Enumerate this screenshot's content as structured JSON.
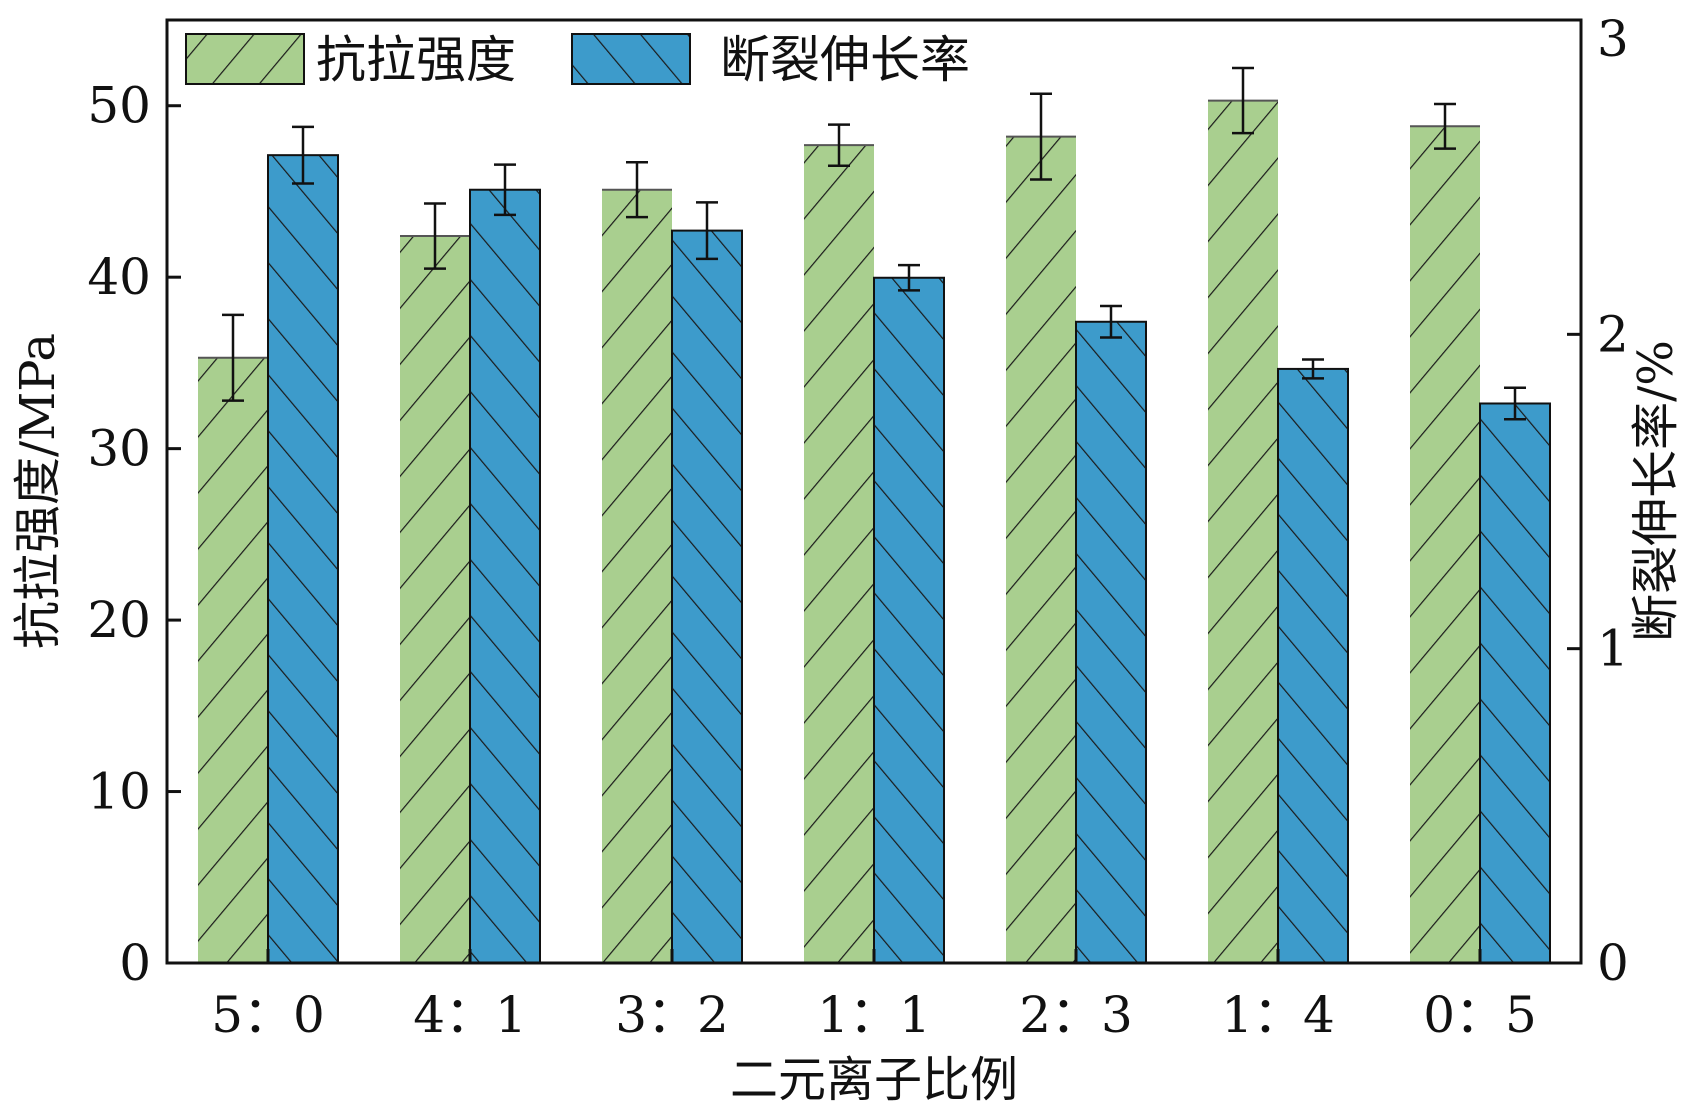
{
  "chart_data": {
    "type": "bar",
    "xlabel": "二元离子比例",
    "ylabel_left": "抗拉强度/MPa",
    "ylabel_right": "断裂伸长率/%",
    "categories": [
      "5：0",
      "4：1",
      "3：2",
      "1：1",
      "2：3",
      "1：4",
      "0：5"
    ],
    "ylim_left": [
      0,
      55
    ],
    "ylim_right": [
      0,
      3
    ],
    "yticks_left": [
      "0",
      "10",
      "20",
      "30",
      "40",
      "50"
    ],
    "yticks_right": [
      "0",
      "1",
      "2",
      "3"
    ],
    "legend_position": "top-left",
    "series": [
      {
        "name": "抗拉强度",
        "axis": "left",
        "color": "#a9cf8f",
        "hatch": "forward-slash",
        "values": [
          35.3,
          42.4,
          45.1,
          47.7,
          48.2,
          50.3,
          48.8
        ],
        "errors": [
          2.5,
          1.9,
          1.6,
          1.2,
          2.5,
          1.9,
          1.3
        ]
      },
      {
        "name": "断裂伸长率",
        "axis": "right",
        "color": "#3d9bcb",
        "hatch": "back-slash",
        "values": [
          2.57,
          2.46,
          2.33,
          2.18,
          2.04,
          1.89,
          1.78
        ],
        "errors": [
          0.09,
          0.08,
          0.09,
          0.04,
          0.05,
          0.03,
          0.05
        ]
      }
    ]
  }
}
